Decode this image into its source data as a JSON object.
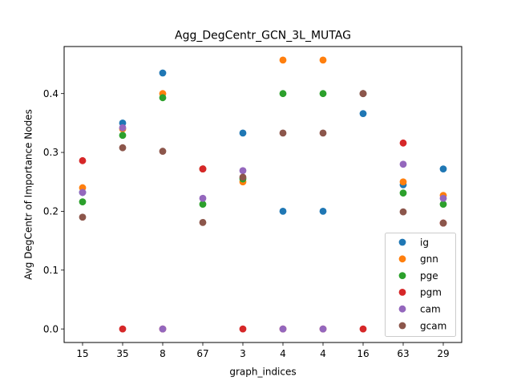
{
  "chart_data": {
    "type": "scatter",
    "title": "Agg_DegCentr_GCN_3L_MUTAG",
    "xlabel": "graph_indices",
    "ylabel": "Avg DegCentr of Importance Nodes",
    "categories": [
      "15",
      "35",
      "8",
      "67",
      "3",
      "4",
      "4",
      "16",
      "63",
      "29"
    ],
    "ylim": [
      -0.023,
      0.48
    ],
    "yticks": [
      0.0,
      0.1,
      0.2,
      0.3,
      0.4
    ],
    "ytick_labels": [
      "0.0",
      "0.1",
      "0.2",
      "0.3",
      "0.4"
    ],
    "grid": false,
    "legend_position": "lower right",
    "series": [
      {
        "name": "ig",
        "color": "#1f77b4",
        "values": [
          0.232,
          0.35,
          0.435,
          0.272,
          0.333,
          0.2,
          0.2,
          0.366,
          0.245,
          0.272
        ]
      },
      {
        "name": "gnn",
        "color": "#ff7f0e",
        "values": [
          0.24,
          0.34,
          0.4,
          0.272,
          0.25,
          0.457,
          0.457,
          0.4,
          0.25,
          0.227
        ]
      },
      {
        "name": "pge",
        "color": "#2ca02c",
        "values": [
          0.216,
          0.329,
          0.393,
          0.212,
          0.255,
          0.4,
          0.4,
          0.4,
          0.231,
          0.212
        ]
      },
      {
        "name": "pgm",
        "color": "#d62728",
        "values": [
          0.286,
          0.0,
          0.0,
          0.272,
          0.0,
          0.0,
          0.0,
          0.0,
          0.316,
          0.18
        ]
      },
      {
        "name": "cam",
        "color": "#9467bd",
        "values": [
          0.232,
          0.342,
          0.0,
          0.222,
          0.269,
          0.0,
          0.0,
          0.4,
          0.28,
          0.222
        ]
      },
      {
        "name": "gcam",
        "color": "#8c564b",
        "values": [
          0.19,
          0.308,
          0.302,
          0.181,
          0.258,
          0.333,
          0.333,
          0.4,
          0.199,
          0.18
        ]
      }
    ]
  }
}
